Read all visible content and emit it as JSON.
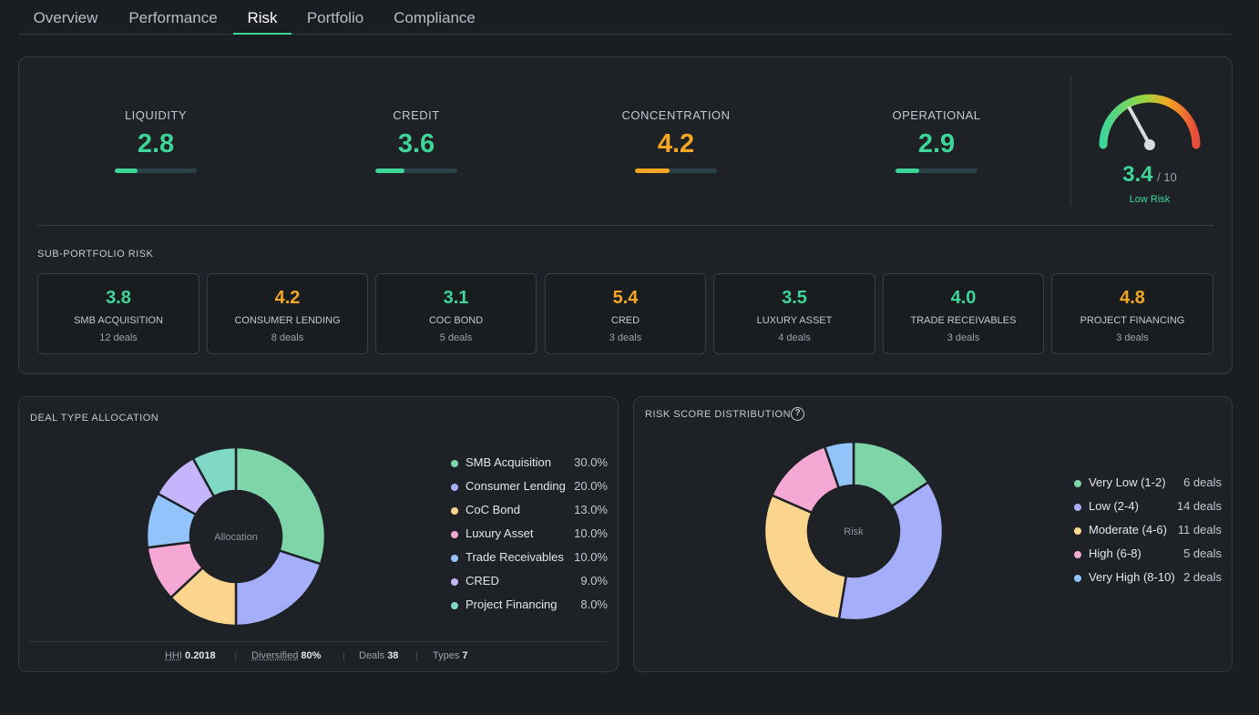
{
  "tabs": [
    {
      "label": "Overview"
    },
    {
      "label": "Performance"
    },
    {
      "label": "Risk"
    },
    {
      "label": "Portfolio"
    },
    {
      "label": "Compliance"
    }
  ],
  "active_tab": "Risk",
  "metrics": [
    {
      "label": "LIQUIDITY",
      "value": "2.8",
      "color": "#3ed598",
      "fill": 0.28
    },
    {
      "label": "CREDIT",
      "value": "3.6",
      "color": "#3ed598",
      "fill": 0.36
    },
    {
      "label": "CONCENTRATION",
      "value": "4.2",
      "color": "#f5a623",
      "fill": 0.42
    },
    {
      "label": "OPERATIONAL",
      "value": "2.9",
      "color": "#3ed598",
      "fill": 0.29
    }
  ],
  "overall": {
    "score": "3.4",
    "max": "/ 10",
    "status": "Low Risk",
    "level": 0.34
  },
  "sub_portfolio": {
    "title": "SUB-PORTFOLIO RISK",
    "items": [
      {
        "value": "3.8",
        "name": "SMB ACQUISITION",
        "deals": "12 deals",
        "color": "#3ed598"
      },
      {
        "value": "4.2",
        "name": "CONSUMER LENDING",
        "deals": "8 deals",
        "color": "#f5a623"
      },
      {
        "value": "3.1",
        "name": "COC BOND",
        "deals": "5 deals",
        "color": "#3ed598"
      },
      {
        "value": "5.4",
        "name": "CRED",
        "deals": "3 deals",
        "color": "#f5a623"
      },
      {
        "value": "3.5",
        "name": "LUXURY ASSET",
        "deals": "4 deals",
        "color": "#3ed598"
      },
      {
        "value": "4.0",
        "name": "TRADE RECEIVABLES",
        "deals": "3 deals",
        "color": "#3ed598"
      },
      {
        "value": "4.8",
        "name": "PROJECT FINANCING",
        "deals": "3 deals",
        "color": "#f5a623"
      }
    ]
  },
  "allocation": {
    "title": "DEAL TYPE ALLOCATION",
    "center_label": "Allocation",
    "footer": {
      "hhi_label": "HHI",
      "hhi_value": "0.2018",
      "div_label": "Diversified",
      "div_value": "80%",
      "deals_label": "Deals",
      "deals_value": "38",
      "types_label": "Types",
      "types_value": "7"
    }
  },
  "distribution": {
    "title": "RISK SCORE DISTRIBUTION",
    "help_glyph": "?",
    "center_label": "Risk"
  },
  "chart_data": [
    {
      "type": "pie",
      "categories": [
        "SMB Acquisition",
        "Consumer Lending",
        "CoC Bond",
        "Luxury Asset",
        "Trade Receivables",
        "CRED",
        "Project Financing"
      ],
      "values": [
        30.0,
        20.0,
        13.0,
        10.0,
        10.0,
        9.0,
        8.0
      ],
      "value_labels": [
        "30.0%",
        "20.0%",
        "13.0%",
        "10.0%",
        "10.0%",
        "9.0%",
        "8.0%"
      ],
      "colors": [
        "#7dd5a8",
        "#a4aefb",
        "#fbd58e",
        "#f5a8d3",
        "#92c4fb",
        "#c4b5fc",
        "#7fd9c6"
      ],
      "title": "DEAL TYPE ALLOCATION",
      "legend_position": "right"
    },
    {
      "type": "pie",
      "categories": [
        "Very Low (1-2)",
        "Low (2-4)",
        "Moderate (4-6)",
        "High (6-8)",
        "Very High (8-10)"
      ],
      "values": [
        6,
        14,
        11,
        5,
        2
      ],
      "value_labels": [
        "6 deals",
        "14 deals",
        "11 deals",
        "5 deals",
        "2 deals"
      ],
      "colors": [
        "#7dd5a8",
        "#a4aefb",
        "#fbd58e",
        "#f5a8d3",
        "#92c4fb"
      ],
      "title": "RISK SCORE DISTRIBUTION",
      "legend_position": "right"
    }
  ]
}
